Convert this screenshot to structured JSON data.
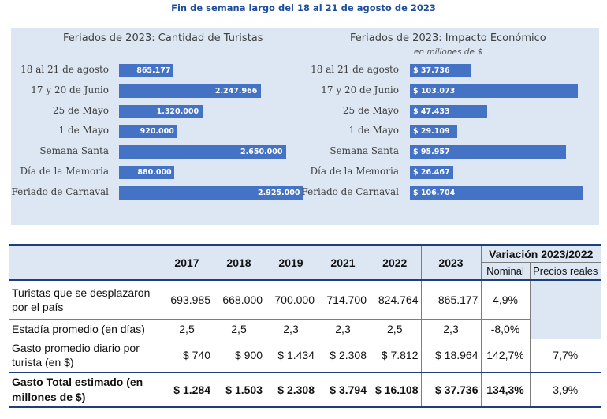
{
  "page_title": "Fin de semana largo del 18 al 21 de agosto de 2023",
  "chart_data": [
    {
      "type": "bar",
      "orientation": "horizontal",
      "title": "Feriados de 2023: Cantidad de Turistas",
      "subtitle": "",
      "categories": [
        "18 al 21 de agosto",
        "17 y 20 de Junio",
        "25 de Mayo",
        "1 de Mayo",
        "Semana Santa",
        "Día de la Memoria",
        "Feriado de Carnaval"
      ],
      "values": [
        865177,
        2247966,
        1320000,
        920000,
        2650000,
        880000,
        2925000
      ],
      "labels": [
        "865.177",
        "2.247.966",
        "1.320.000",
        "920.000",
        "2.650.000",
        "880.000",
        "2.925.000"
      ],
      "xlim": [
        0,
        2925000
      ]
    },
    {
      "type": "bar",
      "orientation": "horizontal",
      "title": "Feriados de 2023: Impacto Económico",
      "subtitle": "en millones de $",
      "categories": [
        "18 al 21 de agosto",
        "17 y 20 de Junio",
        "25 de Mayo",
        "1 de Mayo",
        "Semana Santa",
        "Día de la Memoria",
        "Feriado de Carnaval"
      ],
      "values": [
        37736,
        103073,
        47433,
        29109,
        95957,
        26467,
        106704
      ],
      "labels": [
        "$ 37.736",
        "$ 103.073",
        "$ 47.433",
        "$ 29.109",
        "$ 95.957",
        "$ 26.467",
        "$ 106.704"
      ],
      "xlim": [
        0,
        106704
      ]
    },
    {
      "type": "table",
      "columns": [
        "",
        "2017",
        "2018",
        "2019",
        "2021",
        "2022",
        "2023"
      ],
      "variation_header": "Variación 2023/2022",
      "variation_columns": [
        "Nominal",
        "Precios reales"
      ],
      "rows": [
        {
          "label": "Turistas que se desplazaron por el país",
          "values": [
            "693.985",
            "668.000",
            "700.000",
            "714.700",
            "824.764",
            "865.177"
          ],
          "nominal": "4,9%",
          "real": ""
        },
        {
          "label": "Estadía promedio (en días)",
          "values": [
            "2,5",
            "2,5",
            "2,3",
            "2,3",
            "2,5",
            "2,3"
          ],
          "nominal": "-8,0%",
          "real": ""
        },
        {
          "label": "Gasto promedio diario por turista (en $)",
          "values": [
            "$ 740",
            "$ 900",
            "$ 1.434",
            "$ 2.308",
            "$ 7.812",
            "$ 18.964"
          ],
          "nominal": "142,7%",
          "real": "7,7%"
        },
        {
          "label": "Gasto Total estimado (en millones de $)",
          "values": [
            "$ 1.284",
            "$ 1.503",
            "$ 2.308",
            "$ 3.794",
            "$ 16.108",
            "$ 37.736"
          ],
          "nominal": "134,3%",
          "real": "3,9%"
        }
      ]
    }
  ]
}
